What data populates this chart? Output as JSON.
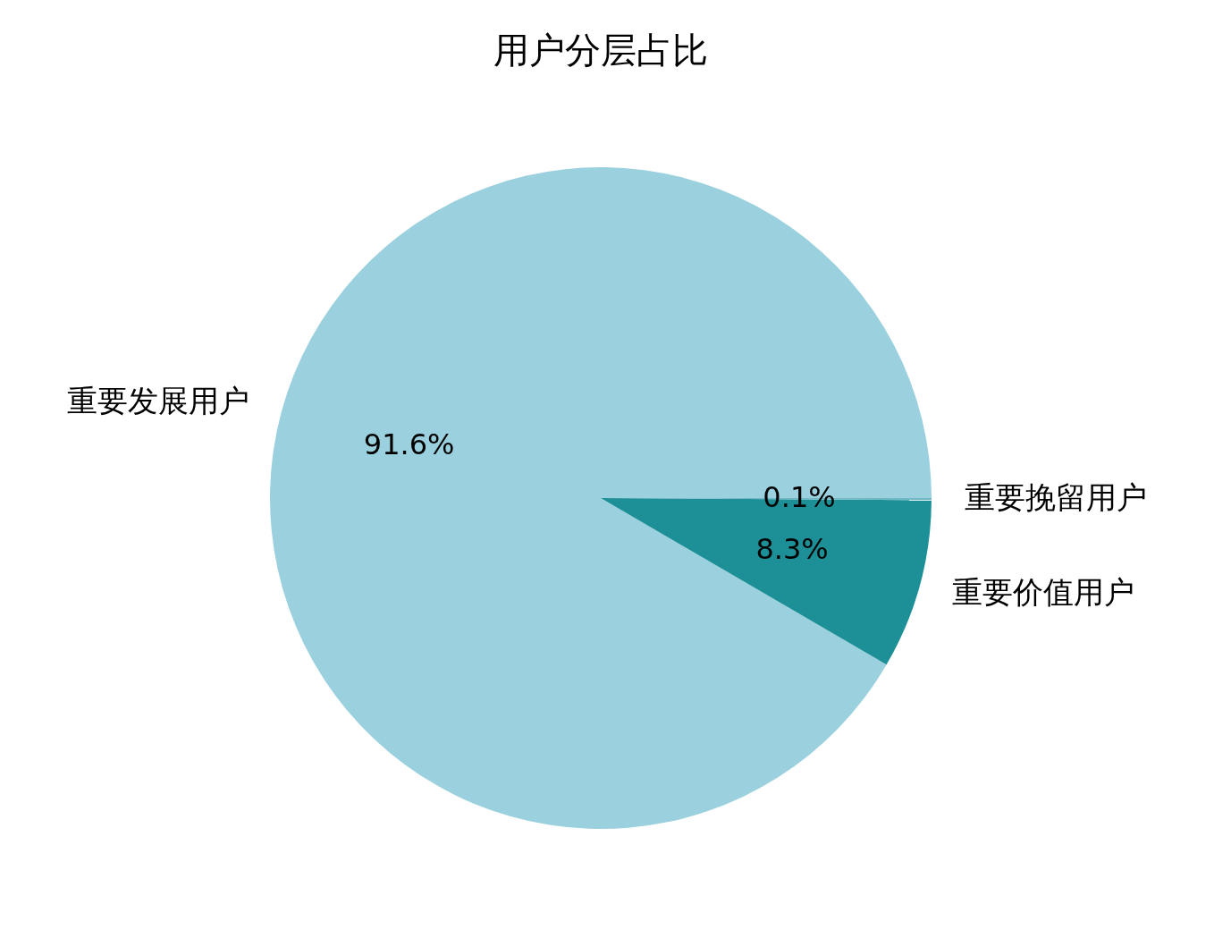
{
  "chart_data": {
    "type": "pie",
    "title": "用户分层占比",
    "categories": [
      "重要发展用户",
      "重要价值用户",
      "重要挽留用户"
    ],
    "values": [
      91.6,
      8.3,
      0.1
    ],
    "colors": [
      "#9bd1de",
      "#1d9097",
      "#6fb8c4"
    ],
    "value_labels": [
      "91.6%",
      "8.3%",
      "0.1%"
    ]
  }
}
